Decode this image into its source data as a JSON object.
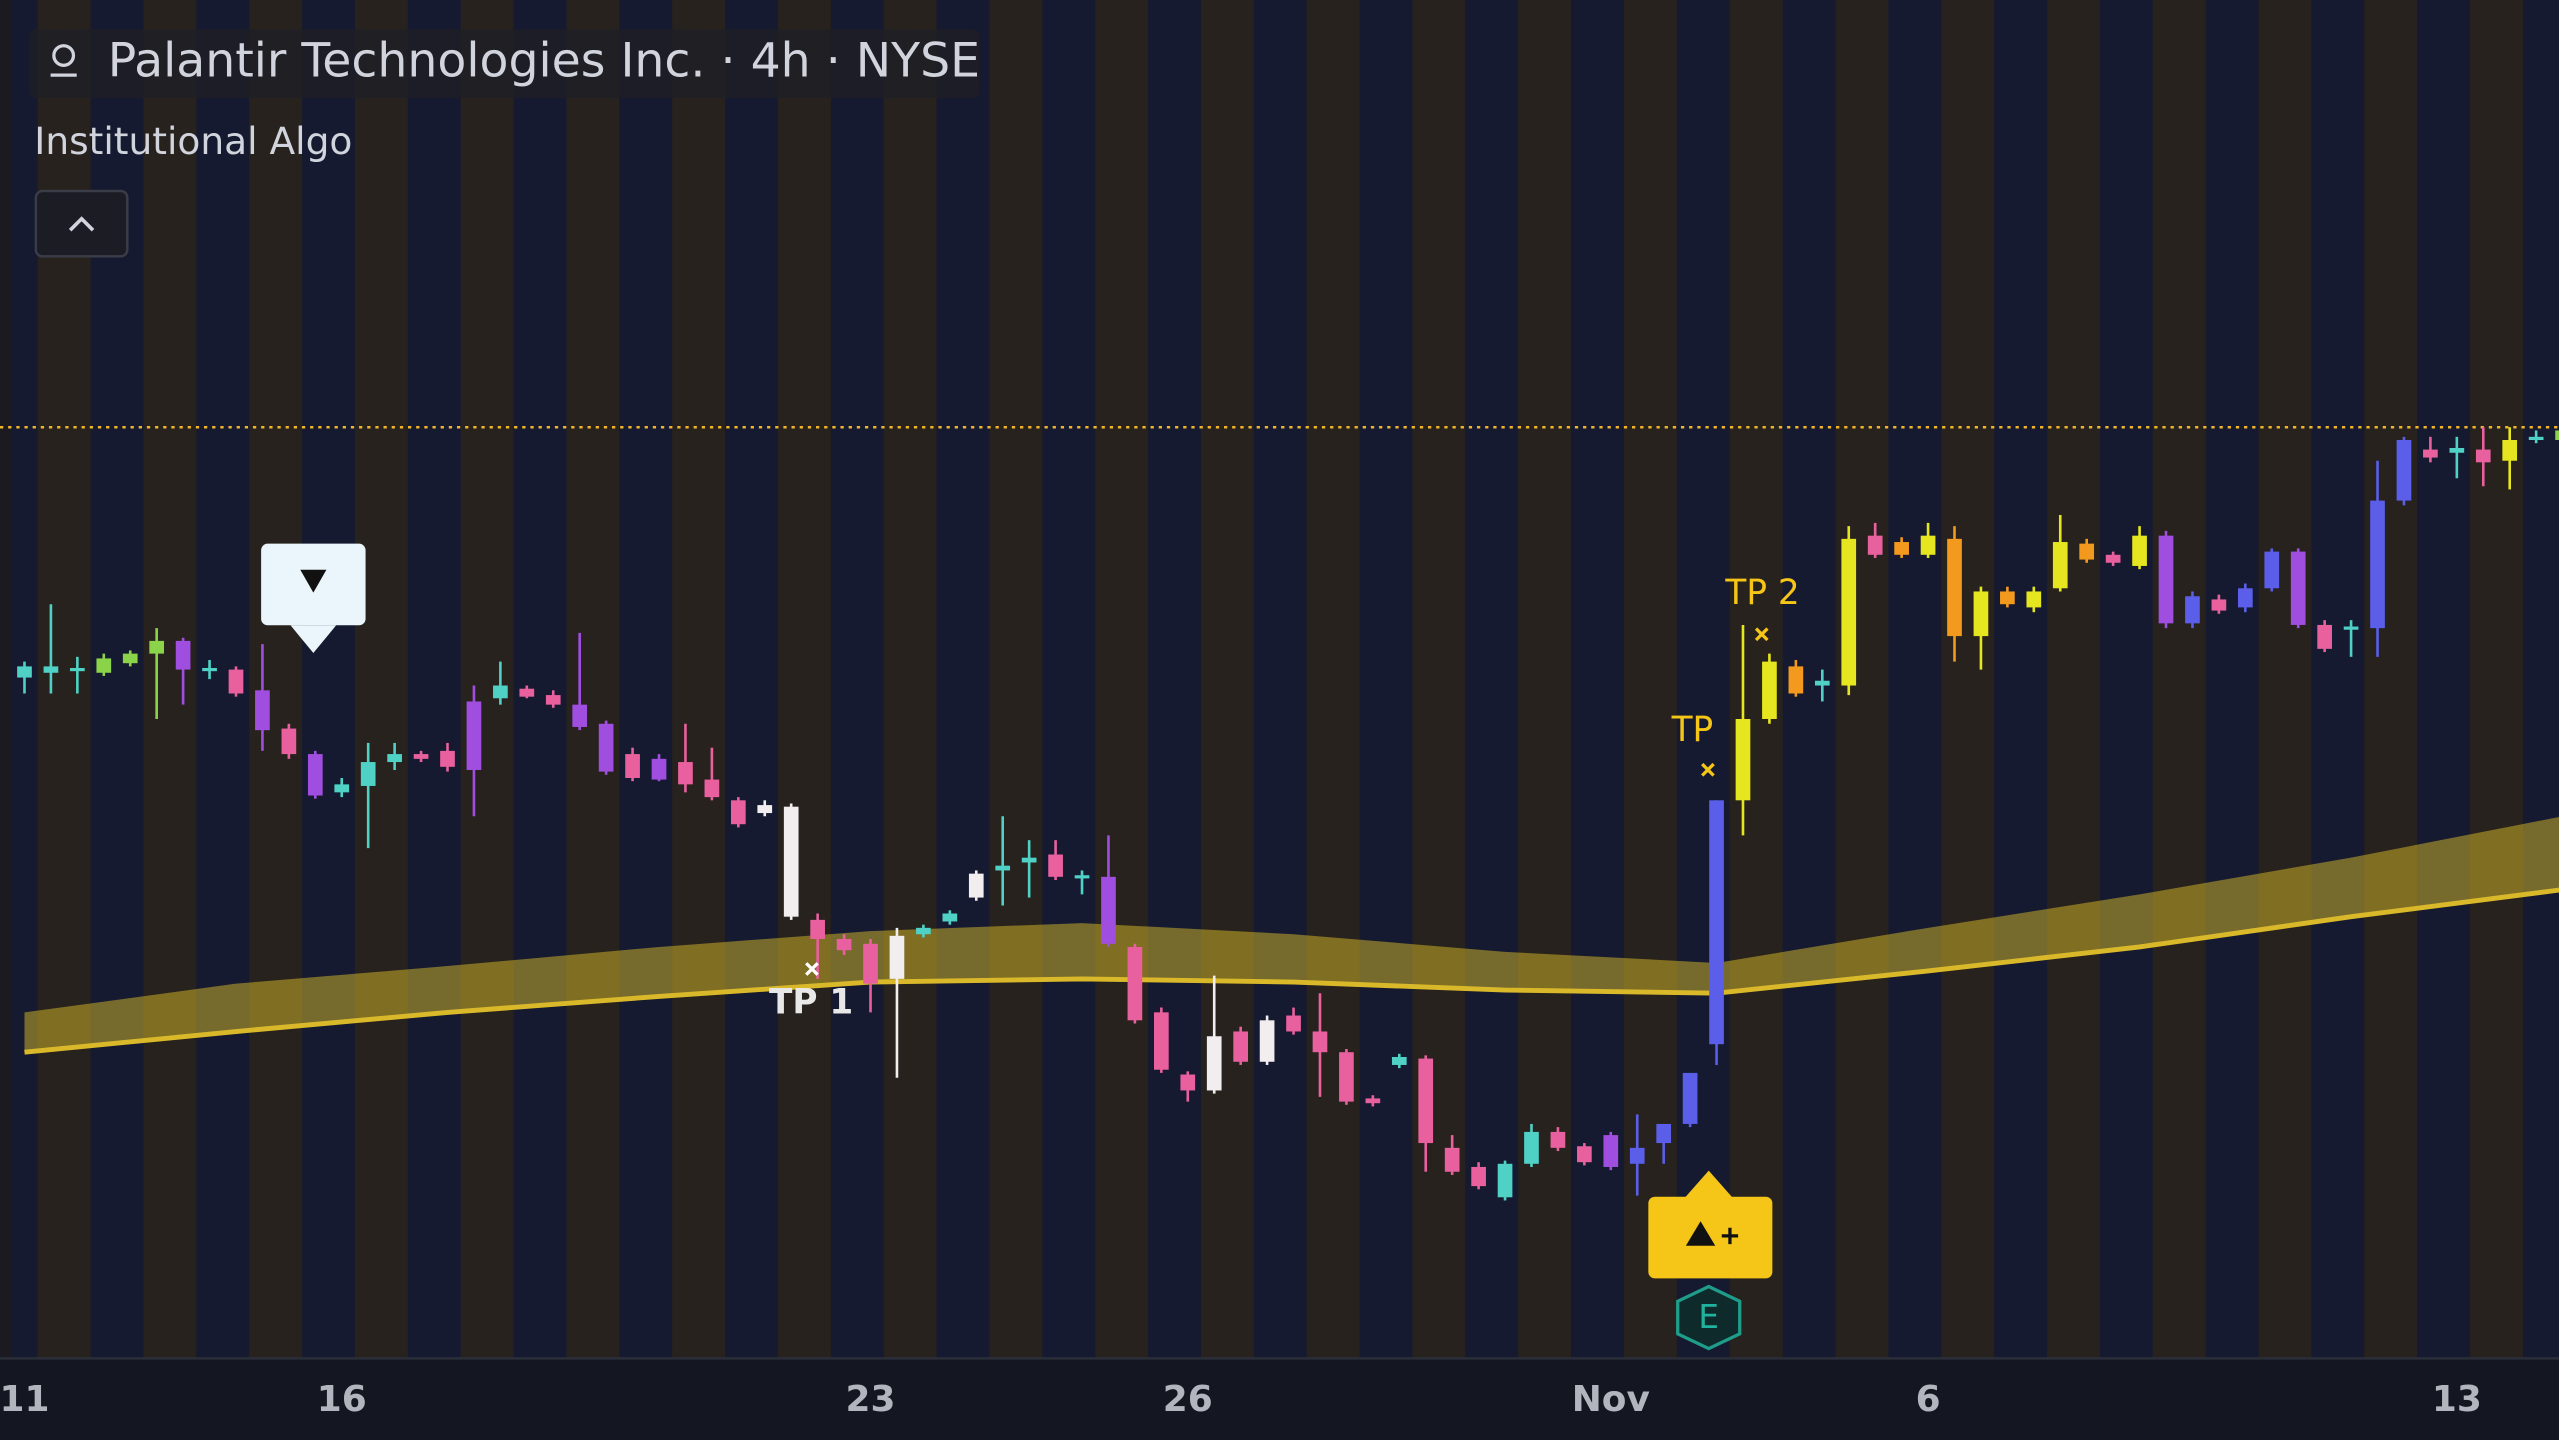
{
  "chart_data": {
    "type": "candlestick",
    "title": "Palantir Technologies Inc. · 4h · NYSE",
    "subtitle": "Institutional Algo",
    "categories": [
      "11",
      null,
      null,
      null,
      null,
      null,
      null,
      null,
      null,
      null,
      null,
      null,
      "16",
      null,
      null,
      null,
      null,
      null,
      null,
      null,
      null,
      null,
      null,
      null,
      null,
      null,
      null,
      null,
      null,
      null,
      null,
      null,
      "23",
      null,
      null,
      null,
      null,
      null,
      null,
      null,
      null,
      null,
      null,
      null,
      "26",
      null,
      null,
      null,
      null,
      null,
      null,
      null,
      null,
      null,
      null,
      null,
      null,
      null,
      null,
      null,
      "Nov",
      null,
      null,
      null,
      null,
      null,
      null,
      null,
      null,
      null,
      null,
      null,
      "6",
      null,
      null,
      null,
      null,
      null,
      null,
      null,
      null,
      null,
      null,
      null,
      null,
      null,
      null,
      null,
      null,
      null,
      null,
      null,
      "13",
      null,
      null,
      null,
      null
    ],
    "candles": [
      [
        17.25,
        17.35,
        17.15,
        17.32
      ],
      [
        17.28,
        17.71,
        17.15,
        17.32
      ],
      [
        17.29,
        17.38,
        17.15,
        17.31
      ],
      [
        17.28,
        17.4,
        17.26,
        17.37
      ],
      [
        17.34,
        17.42,
        17.32,
        17.4
      ],
      [
        17.4,
        17.56,
        16.99,
        17.48
      ],
      [
        17.48,
        17.5,
        17.08,
        17.3
      ],
      [
        17.29,
        17.36,
        17.24,
        17.31
      ],
      [
        17.3,
        17.32,
        17.13,
        17.15
      ],
      [
        17.17,
        17.46,
        16.79,
        16.92
      ],
      [
        16.93,
        16.96,
        16.74,
        16.77
      ],
      [
        16.77,
        16.79,
        16.49,
        16.51
      ],
      [
        16.53,
        16.62,
        16.5,
        16.58
      ],
      [
        16.57,
        16.84,
        16.18,
        16.72
      ],
      [
        16.72,
        16.84,
        16.67,
        16.77
      ],
      [
        16.77,
        16.79,
        16.72,
        16.74
      ],
      [
        16.79,
        16.84,
        16.66,
        16.69
      ],
      [
        16.67,
        17.2,
        16.38,
        17.1
      ],
      [
        17.12,
        17.35,
        17.08,
        17.2
      ],
      [
        17.18,
        17.2,
        17.12,
        17.13
      ],
      [
        17.14,
        17.17,
        17.06,
        17.08
      ],
      [
        17.08,
        17.53,
        16.92,
        16.94
      ],
      [
        16.96,
        16.98,
        16.64,
        16.66
      ],
      [
        16.77,
        16.81,
        16.6,
        16.62
      ],
      [
        16.74,
        16.77,
        16.6,
        16.61
      ],
      [
        16.72,
        16.96,
        16.53,
        16.58
      ],
      [
        16.61,
        16.81,
        16.48,
        16.5
      ],
      [
        16.48,
        16.5,
        16.31,
        16.33
      ],
      [
        16.4,
        16.48,
        16.38,
        16.45
      ],
      [
        16.44,
        16.46,
        15.73,
        15.75
      ],
      [
        15.73,
        15.77,
        15.36,
        15.61
      ],
      [
        15.61,
        15.64,
        15.51,
        15.54
      ],
      [
        15.58,
        15.61,
        15.15,
        15.33
      ],
      [
        15.36,
        15.68,
        14.74,
        15.63
      ],
      [
        15.64,
        15.7,
        15.62,
        15.68
      ],
      [
        15.72,
        15.79,
        15.7,
        15.77
      ],
      [
        15.87,
        16.04,
        15.85,
        16.02
      ],
      [
        16.04,
        16.38,
        15.82,
        16.07
      ],
      [
        16.09,
        16.23,
        15.87,
        16.12
      ],
      [
        16.14,
        16.23,
        15.98,
        16.0
      ],
      [
        15.99,
        16.04,
        15.89,
        16.01
      ],
      [
        16.0,
        16.26,
        15.56,
        15.58
      ],
      [
        15.56,
        15.58,
        15.08,
        15.1
      ],
      [
        15.15,
        15.18,
        14.77,
        14.79
      ],
      [
        14.76,
        14.78,
        14.59,
        14.66
      ],
      [
        14.66,
        15.38,
        14.64,
        15.0
      ],
      [
        15.03,
        15.06,
        14.82,
        14.84
      ],
      [
        14.84,
        15.13,
        14.82,
        15.1
      ],
      [
        15.13,
        15.18,
        15.01,
        15.03
      ],
      [
        15.03,
        15.27,
        14.62,
        14.9
      ],
      [
        14.9,
        14.92,
        14.57,
        14.59
      ],
      [
        14.61,
        14.63,
        14.56,
        14.58
      ],
      [
        14.82,
        14.89,
        14.8,
        14.87
      ],
      [
        14.86,
        14.88,
        14.15,
        14.33
      ],
      [
        14.3,
        14.38,
        14.13,
        14.15
      ],
      [
        14.18,
        14.21,
        14.04,
        14.06
      ],
      [
        13.99,
        14.22,
        13.97,
        14.2
      ],
      [
        14.2,
        14.45,
        14.18,
        14.4
      ],
      [
        14.4,
        14.43,
        14.28,
        14.3
      ],
      [
        14.31,
        14.33,
        14.19,
        14.21
      ],
      [
        14.38,
        14.4,
        14.16,
        14.18
      ],
      [
        14.2,
        14.51,
        14.0,
        14.3
      ],
      [
        14.33,
        14.45,
        14.2,
        14.45
      ],
      [
        14.45,
        14.77,
        14.43,
        14.77
      ],
      [
        14.95,
        16.48,
        14.82,
        16.48
      ],
      [
        16.48,
        17.58,
        16.26,
        16.99
      ],
      [
        16.99,
        17.4,
        16.96,
        17.35
      ],
      [
        17.32,
        17.36,
        17.13,
        17.15
      ],
      [
        17.2,
        17.3,
        17.1,
        17.23
      ],
      [
        17.2,
        18.2,
        17.14,
        18.12
      ],
      [
        18.14,
        18.22,
        18.0,
        18.02
      ],
      [
        18.1,
        18.13,
        18.0,
        18.02
      ],
      [
        18.02,
        18.22,
        18.0,
        18.14
      ],
      [
        18.12,
        18.2,
        17.35,
        17.51
      ],
      [
        17.51,
        17.82,
        17.3,
        17.79
      ],
      [
        17.79,
        17.82,
        17.69,
        17.71
      ],
      [
        17.69,
        17.82,
        17.66,
        17.79
      ],
      [
        17.81,
        18.27,
        17.79,
        18.1
      ],
      [
        18.09,
        18.12,
        17.97,
        17.99
      ],
      [
        18.02,
        18.04,
        17.95,
        17.97
      ],
      [
        17.95,
        18.2,
        17.93,
        18.14
      ],
      [
        18.14,
        18.17,
        17.56,
        17.59
      ],
      [
        17.59,
        17.79,
        17.56,
        17.76
      ],
      [
        17.74,
        17.77,
        17.65,
        17.67
      ],
      [
        17.69,
        17.84,
        17.66,
        17.81
      ],
      [
        17.81,
        18.06,
        17.79,
        18.04
      ],
      [
        18.04,
        18.06,
        17.56,
        17.58
      ],
      [
        17.58,
        17.61,
        17.41,
        17.43
      ],
      [
        17.55,
        17.61,
        17.38,
        17.57
      ],
      [
        17.56,
        18.61,
        17.38,
        18.36
      ],
      [
        18.36,
        18.76,
        18.33,
        18.74
      ],
      [
        18.68,
        18.76,
        18.6,
        18.63
      ],
      [
        18.66,
        18.76,
        18.5,
        18.69
      ],
      [
        18.68,
        18.82,
        18.45,
        18.6
      ],
      [
        18.61,
        18.82,
        18.43,
        18.74
      ],
      [
        18.74,
        18.8,
        18.72,
        18.76
      ],
      [
        18.74,
        18.82,
        18.72,
        18.8
      ]
    ],
    "colors": [
      "#4fd1c5",
      "#4fd1c5",
      "#4fd1c5",
      "#8bd44a",
      "#8bd44a",
      "#8bd44a",
      "#a04ee0",
      "#4fd1c5",
      "#e8609e",
      "#a04ee0",
      "#e8609e",
      "#a04ee0",
      "#4fd1c5",
      "#4fd1c5",
      "#4fd1c5",
      "#e8609e",
      "#e8609e",
      "#a04ee0",
      "#4fd1c5",
      "#e8609e",
      "#e8609e",
      "#a04ee0",
      "#a04ee0",
      "#e8609e",
      "#a04ee0",
      "#e8609e",
      "#e8609e",
      "#e8609e",
      "#f2eef0",
      "#f2eef0",
      "#e8609e",
      "#e8609e",
      "#e8609e",
      "#f2eef0",
      "#4fd1c5",
      "#4fd1c5",
      "#f2eef0",
      "#4fd1c5",
      "#4fd1c5",
      "#e8609e",
      "#4fd1c5",
      "#a04ee0",
      "#e8609e",
      "#e8609e",
      "#e8609e",
      "#f2eef0",
      "#e8609e",
      "#f2eef0",
      "#e8609e",
      "#e8609e",
      "#e8609e",
      "#e8609e",
      "#4fd1c5",
      "#e8609e",
      "#e8609e",
      "#e8609e",
      "#4fd1c5",
      "#4fd1c5",
      "#e8609e",
      "#e8609e",
      "#a04ee0",
      "#5a5ee8",
      "#5a5ee8",
      "#5a5ee8",
      "#5a5ee8",
      "#e5e620",
      "#e5e620",
      "#f39a1e",
      "#4fd1c5",
      "#e5e620",
      "#e8609e",
      "#f39a1e",
      "#e5e620",
      "#f39a1e",
      "#e5e620",
      "#f39a1e",
      "#e5e620",
      "#e5e620",
      "#f39a1e",
      "#e8609e",
      "#e5e620",
      "#a04ee0",
      "#5a5ee8",
      "#e8609e",
      "#5a5ee8",
      "#5a5ee8",
      "#a04ee0",
      "#e8609e",
      "#4fd1c5",
      "#5a5ee8",
      "#5a5ee8",
      "#e8609e",
      "#4fd1c5",
      "#e8609e",
      "#e5e620",
      "#4fd1c5",
      "#8bd44a"
    ],
    "ylim": [
      13.0,
      21.5
    ],
    "ma_band": {
      "x": [
        0,
        8,
        16,
        24,
        32,
        40,
        48,
        56,
        64,
        72,
        80,
        88,
        96
      ],
      "upper": [
        15.15,
        15.33,
        15.44,
        15.56,
        15.66,
        15.71,
        15.64,
        15.53,
        15.46,
        15.68,
        15.89,
        16.12,
        16.38
      ],
      "lower": [
        14.9,
        15.03,
        15.15,
        15.25,
        15.34,
        15.36,
        15.34,
        15.29,
        15.27,
        15.41,
        15.56,
        15.75,
        15.92
      ],
      "color": "#d9b92a"
    },
    "price_line": 18.82,
    "price_line_color": "#f0b429",
    "annotations": {
      "tp1": "TP 1",
      "tp": "TP",
      "tp2": "TP 2",
      "earnings": "E"
    }
  }
}
